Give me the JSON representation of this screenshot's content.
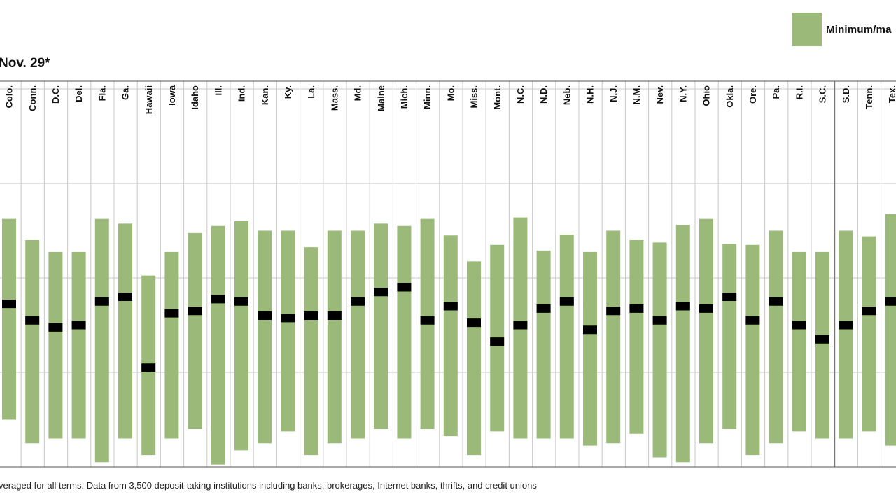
{
  "legend": {
    "label": "Minimum/ma",
    "color": "#9bba7a"
  },
  "subtitle": "Nov. 29*",
  "footnote": "veraged for all terms. Data from 3,500 deposit-taking institutions including banks, brokerages, Internet banks, thrifts, and credit unions",
  "colors": {
    "bar": "#9bba7a",
    "marker": "#000000",
    "grid": "#c8c8c8",
    "axis": "#555555"
  },
  "chart_data": {
    "type": "bar",
    "title": "",
    "xlabel": "",
    "ylabel": "",
    "ylim": [
      0,
      8
    ],
    "grid": true,
    "legend_position": "top-right",
    "categories": [
      "Colo.",
      "Conn.",
      "D.C.",
      "Del.",
      "Fla.",
      "Ga.",
      "Hawaii",
      "Iowa",
      "Idaho",
      "Ill.",
      "Ind.",
      "Kan.",
      "Ky.",
      "La.",
      "Mass.",
      "Md.",
      "Maine",
      "Mich.",
      "Minn.",
      "Mo.",
      "Miss.",
      "Mont.",
      "N.C.",
      "N.D.",
      "Neb.",
      "N.H.",
      "N.J.",
      "N.M.",
      "Nev.",
      "N.Y.",
      "Ohio",
      "Okla.",
      "Ore.",
      "Pa.",
      "R.I.",
      "S.C.",
      "S.D.",
      "Tenn.",
      "Tex."
    ],
    "series": [
      {
        "name": "Minimum/ma",
        "values": [
          [
            1.0,
            5.25
          ],
          [
            0.5,
            4.8
          ],
          [
            0.6,
            4.55
          ],
          [
            0.6,
            4.55
          ],
          [
            0.1,
            5.25
          ],
          [
            0.6,
            5.15
          ],
          [
            0.25,
            4.05
          ],
          [
            0.6,
            4.55
          ],
          [
            0.8,
            4.95
          ],
          [
            0.05,
            5.1
          ],
          [
            0.35,
            5.2
          ],
          [
            0.5,
            5.0
          ],
          [
            0.75,
            5.0
          ],
          [
            0.25,
            4.65
          ],
          [
            0.5,
            5.0
          ],
          [
            0.6,
            5.0
          ],
          [
            0.8,
            5.15
          ],
          [
            0.6,
            5.1
          ],
          [
            0.8,
            5.25
          ],
          [
            0.65,
            4.9
          ],
          [
            0.25,
            4.35
          ],
          [
            0.75,
            4.7
          ],
          [
            0.6,
            5.28
          ],
          [
            0.6,
            4.58
          ],
          [
            0.6,
            4.92
          ],
          [
            0.45,
            4.55
          ],
          [
            0.5,
            5.0
          ],
          [
            0.7,
            4.8
          ],
          [
            0.2,
            4.75
          ],
          [
            0.1,
            5.12
          ],
          [
            0.5,
            5.25
          ],
          [
            0.8,
            4.72
          ],
          [
            0.25,
            4.7
          ],
          [
            0.5,
            5.0
          ],
          [
            0.75,
            4.55
          ],
          [
            0.6,
            4.55
          ],
          [
            0.6,
            5.0
          ],
          [
            0.75,
            4.88
          ],
          [
            0.45,
            5.35
          ]
        ]
      },
      {
        "name": "",
        "values": [
          3.45,
          3.1,
          2.95,
          3.0,
          3.5,
          3.6,
          2.1,
          3.25,
          3.3,
          3.55,
          3.5,
          3.2,
          3.15,
          3.2,
          3.2,
          3.5,
          3.7,
          3.8,
          3.1,
          3.4,
          3.05,
          2.65,
          3.0,
          3.35,
          3.5,
          2.9,
          3.3,
          3.35,
          3.1,
          3.4,
          3.35,
          3.6,
          3.1,
          3.5,
          3.0,
          2.7,
          3.0,
          3.3,
          3.5
        ]
      }
    ]
  }
}
